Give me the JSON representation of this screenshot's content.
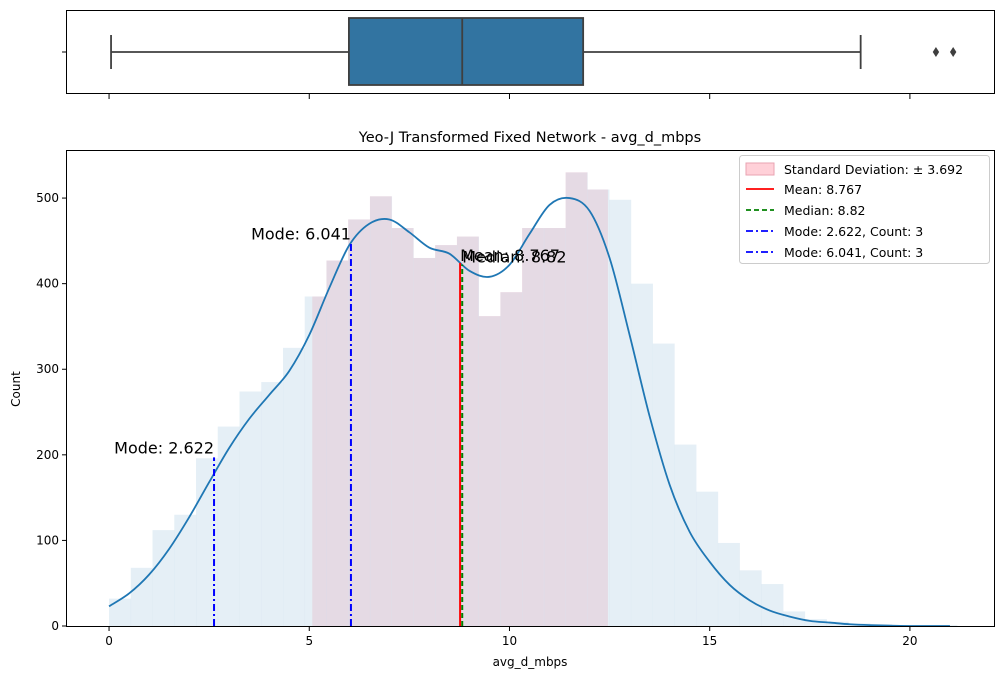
{
  "chart_data": [
    {
      "type": "box",
      "orientation": "horizontal",
      "xlim": [
        -1.05,
        22.1
      ],
      "whisker_low": 0.05,
      "q1": 5.99,
      "median": 8.82,
      "q3": 11.84,
      "whisker_high": 18.77,
      "outliers": [
        20.65,
        21.08
      ],
      "colors": {
        "box": "#3274a1",
        "edge": "#3f3f3f"
      }
    },
    {
      "type": "histogram",
      "title": "Yeo-J Transformed Fixed Network - avg_d_mbps",
      "xlabel": "avg_d_mbps",
      "ylabel": "Count",
      "xlim": [
        -1.05,
        22.1
      ],
      "ylim": [
        0,
        555
      ],
      "xticks": [
        0,
        5,
        10,
        15,
        20
      ],
      "yticks": [
        0,
        100,
        200,
        300,
        400,
        500
      ],
      "bin_width": 0.543,
      "bin_start": 0.0,
      "counts": [
        32,
        68,
        112,
        130,
        196,
        233,
        274,
        285,
        325,
        385,
        427,
        475,
        502,
        465,
        430,
        445,
        455,
        362,
        390,
        465,
        465,
        530,
        510,
        498,
        400,
        330,
        212,
        157,
        97,
        65,
        49,
        17,
        8,
        5,
        3,
        2,
        1,
        1,
        1
      ],
      "kde": {
        "x": [
          0,
          0.5,
          1,
          1.5,
          2,
          2.5,
          3,
          3.5,
          4,
          4.5,
          5,
          5.5,
          6,
          6.5,
          7,
          7.5,
          8,
          8.5,
          9,
          9.5,
          10,
          10.5,
          11,
          11.5,
          12,
          12.5,
          13,
          13.5,
          14,
          14.5,
          15,
          15.5,
          16,
          16.5,
          17,
          17.5,
          18,
          18.5,
          19,
          20,
          21
        ],
        "y": [
          23,
          38,
          60,
          90,
          127,
          168,
          208,
          242,
          270,
          298,
          340,
          395,
          445,
          470,
          475,
          460,
          442,
          435,
          415,
          408,
          422,
          458,
          492,
          500,
          485,
          430,
          340,
          245,
          165,
          110,
          75,
          48,
          30,
          18,
          11,
          6,
          4,
          2,
          1,
          0,
          0
        ]
      },
      "std_band": {
        "label": "Standard Deviation: ± 3.692",
        "from": 5.075,
        "to": 12.459
      },
      "mean": {
        "label": "Mean: 8.767",
        "value": 8.767,
        "annotation": "Mean: 8.767"
      },
      "median": {
        "label": "Median: 8.82",
        "value": 8.82,
        "annotation": "Median: 8.82"
      },
      "modes": [
        {
          "label": "Mode: 2.622, Count: 3",
          "value": 2.622,
          "height": 197,
          "annotation": "Mode: 2.622"
        },
        {
          "label": "Mode: 6.041, Count: 3",
          "value": 6.041,
          "height": 447,
          "annotation": "Mode: 6.041"
        }
      ],
      "legend_position": "top-right",
      "colors": {
        "hist": "#cfe1ef",
        "kde": "#1f77b4",
        "band_fill": "#ffc0cb",
        "band_edge": "#e8a3b2",
        "mean": "#ff0000",
        "median": "#008000",
        "mode": "#0000ff"
      }
    }
  ]
}
